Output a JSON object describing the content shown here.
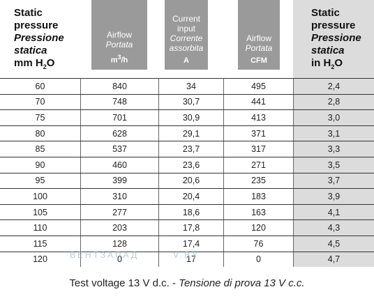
{
  "table": {
    "headers": [
      {
        "line1": "Static",
        "line2": "pressure",
        "line3": "Pressione",
        "line4": "statica",
        "unit": "mm H",
        "unit_sub": "2",
        "unit_after": "O"
      },
      {
        "line1": "Airflow",
        "line2": "Portata",
        "unit": "m",
        "unit_sup": "3",
        "unit_after": "/h"
      },
      {
        "line1": "Current",
        "line2": "input",
        "line3": "Corrente",
        "line4": "assorbita",
        "unit": "A"
      },
      {
        "line1": "Airflow",
        "line2": "Portata",
        "unit": "CFM"
      },
      {
        "line1": "Static",
        "line2": "pressure",
        "line3": "Pressione",
        "line4": "statica",
        "unit": "in H",
        "unit_sub": "2",
        "unit_after": "O"
      }
    ],
    "rows": [
      [
        "60",
        "840",
        "34",
        "495",
        "2,4"
      ],
      [
        "70",
        "748",
        "30,7",
        "441",
        "2,8"
      ],
      [
        "75",
        "701",
        "30,9",
        "413",
        "3,0"
      ],
      [
        "80",
        "628",
        "29,1",
        "371",
        "3,1"
      ],
      [
        "85",
        "537",
        "23,7",
        "317",
        "3,3"
      ],
      [
        "90",
        "460",
        "23,6",
        "271",
        "3,5"
      ],
      [
        "95",
        "399",
        "20,6",
        "235",
        "3,7"
      ],
      [
        "100",
        "310",
        "20,4",
        "183",
        "3,9"
      ],
      [
        "105",
        "277",
        "18,6",
        "163",
        "4,1"
      ],
      [
        "110",
        "203",
        "17,8",
        "120",
        "4,3"
      ],
      [
        "115",
        "128",
        "17,4",
        "76",
        "4,5"
      ],
      [
        "120",
        "0",
        "17",
        "0",
        "4,7"
      ]
    ]
  },
  "watermark": {
    "left": "ВЕНТЗАПАД",
    "right": "V.BY"
  },
  "caption": {
    "text": "Test voltage 13 V d.c. - ",
    "italic": "Tensione di prova 13 V c.c."
  }
}
